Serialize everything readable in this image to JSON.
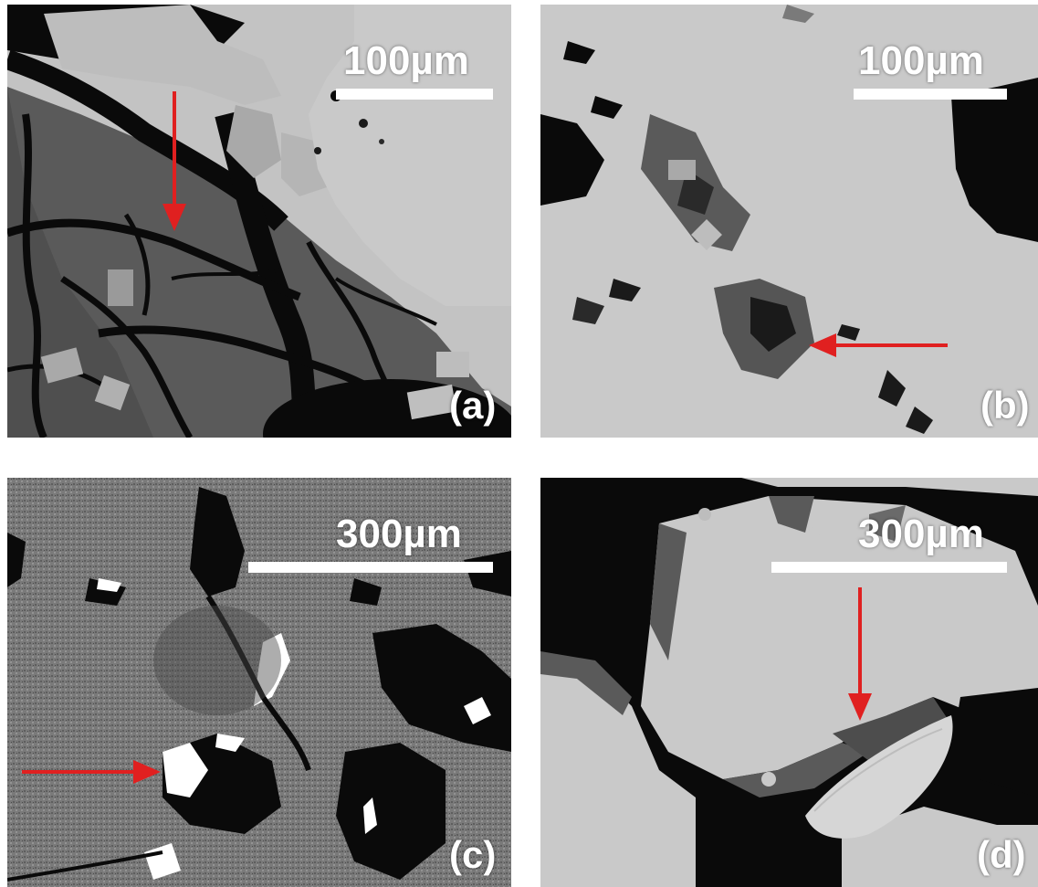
{
  "panels": [
    {
      "id": "a",
      "label": "(a)",
      "scale": "100µm"
    },
    {
      "id": "b",
      "label": "(b)",
      "scale": "100µm"
    },
    {
      "id": "c",
      "label": "(c)",
      "scale": "300µm"
    },
    {
      "id": "d",
      "label": "(d)",
      "scale": "300µm"
    }
  ],
  "colors": {
    "arrow": "#e02020",
    "matrix_light": "#c9c9c9",
    "phase_dark_gray": "#5a5a5a",
    "pore_black": "#0a0a0a",
    "grain_mid_gray": "#7a7a7a",
    "bright_phase": "#ffffff"
  }
}
